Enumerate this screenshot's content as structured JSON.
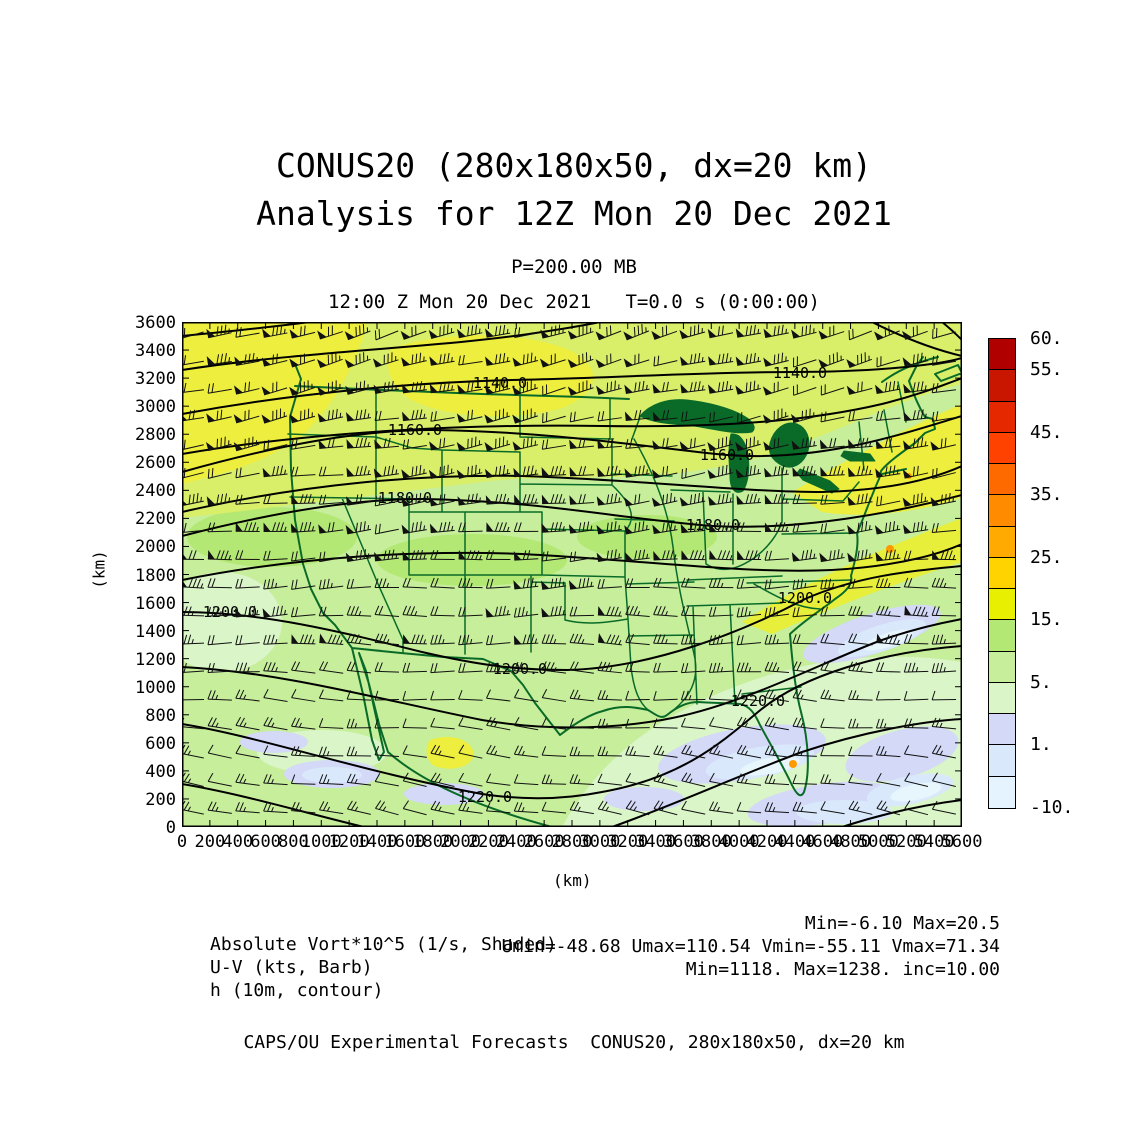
{
  "header": {
    "title_line1": "CONUS20 (280x180x50, dx=20 km)",
    "title_line2": "Analysis for 12Z Mon 20 Dec 2021",
    "level_label": "P=200.00 MB",
    "time_label": "12:00 Z Mon 20 Dec 2021   T=0.0 s (0:00:00)"
  },
  "chart_data": {
    "type": "heatmap",
    "title": "CONUS20 (280x180x50, dx=20 km) — Analysis for 12Z Mon 20 Dec 2021",
    "subtitle": "P=200.00 MB",
    "xlabel": "(km)",
    "ylabel": "(km)",
    "xlim": [
      0,
      5600
    ],
    "ylim": [
      0,
      3600
    ],
    "x_ticks": [
      0,
      200,
      400,
      600,
      800,
      1000,
      1200,
      1400,
      1600,
      1800,
      2000,
      2200,
      2400,
      2600,
      2800,
      3000,
      3200,
      3400,
      3600,
      3800,
      4000,
      4200,
      4400,
      4600,
      4800,
      5000,
      5200,
      5400,
      5600
    ],
    "y_ticks": [
      3600,
      3400,
      3200,
      3000,
      2800,
      2600,
      2400,
      2200,
      2000,
      1800,
      1600,
      1400,
      1200,
      1000,
      800,
      600,
      400,
      200,
      0
    ],
    "shaded_field": {
      "name": "Absolute Vort*10^5",
      "units": "1/s",
      "min": -6.1,
      "max": 20.5
    },
    "wind_barbs": {
      "units": "kts",
      "umin": -48.68,
      "umax": 110.54,
      "vmin": -55.11,
      "vmax": 71.34,
      "grid_cols": 28,
      "grid_rows": 18
    },
    "contour_field": {
      "name": "h",
      "units": "10m",
      "min": 1118,
      "max": 1238,
      "inc": 10.0
    },
    "contour_labels": [
      {
        "text": "1140.0",
        "x": 318,
        "y": 66
      },
      {
        "text": "1140.0",
        "x": 618,
        "y": 56
      },
      {
        "text": "1160.0",
        "x": 233,
        "y": 113
      },
      {
        "text": "1160.0",
        "x": 545,
        "y": 138
      },
      {
        "text": "1180.0",
        "x": 223,
        "y": 181
      },
      {
        "text": "1180.0",
        "x": 531,
        "y": 208
      },
      {
        "text": "1200.0",
        "x": 48,
        "y": 295
      },
      {
        "text": "1200.0",
        "x": 338,
        "y": 352
      },
      {
        "text": "1200.0",
        "x": 623,
        "y": 281
      },
      {
        "text": "1220.0",
        "x": 576,
        "y": 384
      },
      {
        "text": "1220.0",
        "x": 303,
        "y": 480
      }
    ],
    "colorbar": {
      "colors_top_to_bottom": [
        "#b00000",
        "#c81600",
        "#e62800",
        "#ff4200",
        "#ff6a00",
        "#ff8c00",
        "#ffaa00",
        "#ffd300",
        "#e8ef00",
        "#b2e873",
        "#c6ee9b",
        "#daf5c8",
        "#d3d9f7",
        "#d9e9fb",
        "#e4f3fd"
      ],
      "tick_labels": [
        {
          "text": "60.",
          "boundary": 0
        },
        {
          "text": "55.",
          "boundary": 1
        },
        {
          "text": "45.",
          "boundary": 3
        },
        {
          "text": "35.",
          "boundary": 5
        },
        {
          "text": "25.",
          "boundary": 7
        },
        {
          "text": "15.",
          "boundary": 9
        },
        {
          "text": "5.",
          "boundary": 11
        },
        {
          "text": "1.",
          "boundary": 13
        },
        {
          "text": "-10.",
          "boundary": 15
        }
      ]
    }
  },
  "legend": {
    "rows": [
      {
        "left": "Absolute Vort*10^5 (1/s, Shaded)",
        "right": "Min=-6.10 Max=20.5"
      },
      {
        "left": "U-V (kts, Barb)",
        "right": "Umin=-48.68 Umax=110.54 Vmin=-55.11 Vmax=71.34"
      },
      {
        "left": "h (10m, contour)",
        "right": "Min=1118. Max=1238. inc=10.00"
      }
    ]
  },
  "footer": {
    "text": "CAPS/OU Experimental Forecasts  CONUS20, 280x180x50, dx=20 km"
  }
}
